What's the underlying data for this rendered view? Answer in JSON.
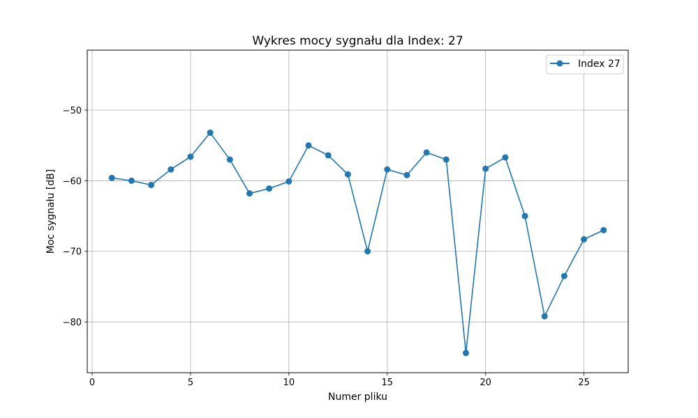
{
  "chart_data": {
    "type": "line",
    "title": "Wykres mocy sygnału dla Index: 27",
    "xlabel": "Numer pliku",
    "ylabel": "Moc sygnału [dB]",
    "xlim": [
      -0.25,
      27.25
    ],
    "ylim": [
      -87.2,
      -41.5
    ],
    "xticks": [
      0,
      5,
      10,
      15,
      20,
      25
    ],
    "yticks": [
      -80,
      -70,
      -60,
      -50
    ],
    "ytick_labels": [
      "−80",
      "−70",
      "−60",
      "−50"
    ],
    "grid": true,
    "legend_position": "top-right",
    "series": [
      {
        "name": "Index 27",
        "color": "#1f77b4",
        "marker": "circle",
        "x": [
          1,
          2,
          3,
          4,
          5,
          6,
          7,
          8,
          9,
          10,
          11,
          12,
          13,
          14,
          15,
          16,
          17,
          18,
          19,
          20,
          21,
          22,
          23,
          24,
          25,
          26
        ],
        "y": [
          -59.6,
          -60.0,
          -60.6,
          -58.4,
          -56.6,
          -53.2,
          -57.0,
          -61.8,
          -61.1,
          -60.1,
          -55.0,
          -56.4,
          -59.1,
          -70.0,
          -58.4,
          -59.2,
          -56.0,
          -57.0,
          -84.4,
          -58.3,
          -56.7,
          -65.0,
          -79.2,
          -73.5,
          -68.3,
          -67.0
        ]
      }
    ]
  }
}
